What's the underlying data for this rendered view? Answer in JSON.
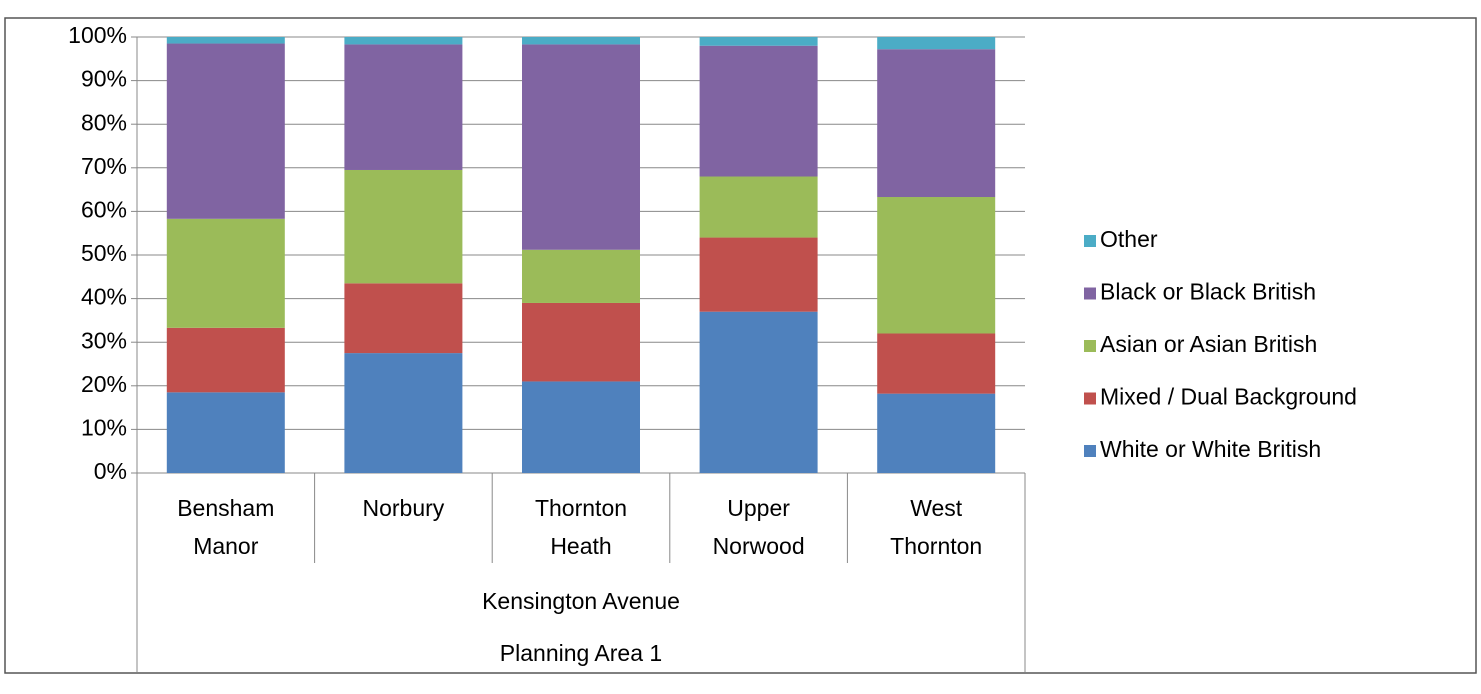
{
  "chart_data": {
    "type": "stacked_bar",
    "categories": [
      "Bensham Manor",
      "Norbury",
      "Thornton Heath",
      "Upper Norwood",
      "West Thornton"
    ],
    "group_labels": [
      "Kensington Avenue",
      "Planning Area 1"
    ],
    "series": [
      {
        "name": "White or White British",
        "color": "#4f81bd",
        "values": [
          18.5,
          27.5,
          21,
          37,
          18.2
        ]
      },
      {
        "name": "Mixed /  Dual Background",
        "color": "#c0504d",
        "values": [
          14.8,
          16,
          18,
          17,
          13.8
        ]
      },
      {
        "name": "Asian or Asian British",
        "color": "#9bbb59",
        "values": [
          25,
          26,
          12.2,
          14,
          31.3
        ]
      },
      {
        "name": "Black or Black British",
        "color": "#8064a2",
        "values": [
          40.2,
          28.8,
          47.1,
          30,
          33.9
        ]
      },
      {
        "name": "Other",
        "color": "#4bacc6",
        "values": [
          1.5,
          1.7,
          1.7,
          2,
          2.8
        ]
      }
    ],
    "ylim": [
      0,
      100
    ],
    "yticks": [
      {
        "value": 0,
        "label": "0%"
      },
      {
        "value": 10,
        "label": "10%"
      },
      {
        "value": 20,
        "label": "20%"
      },
      {
        "value": 30,
        "label": "30%"
      },
      {
        "value": 40,
        "label": "40%"
      },
      {
        "value": 50,
        "label": "50%"
      },
      {
        "value": 60,
        "label": "60%"
      },
      {
        "value": 70,
        "label": "70%"
      },
      {
        "value": 80,
        "label": "80%"
      },
      {
        "value": 90,
        "label": "90%"
      },
      {
        "value": 100,
        "label": "100%"
      }
    ],
    "grid": true,
    "legend": "right"
  }
}
